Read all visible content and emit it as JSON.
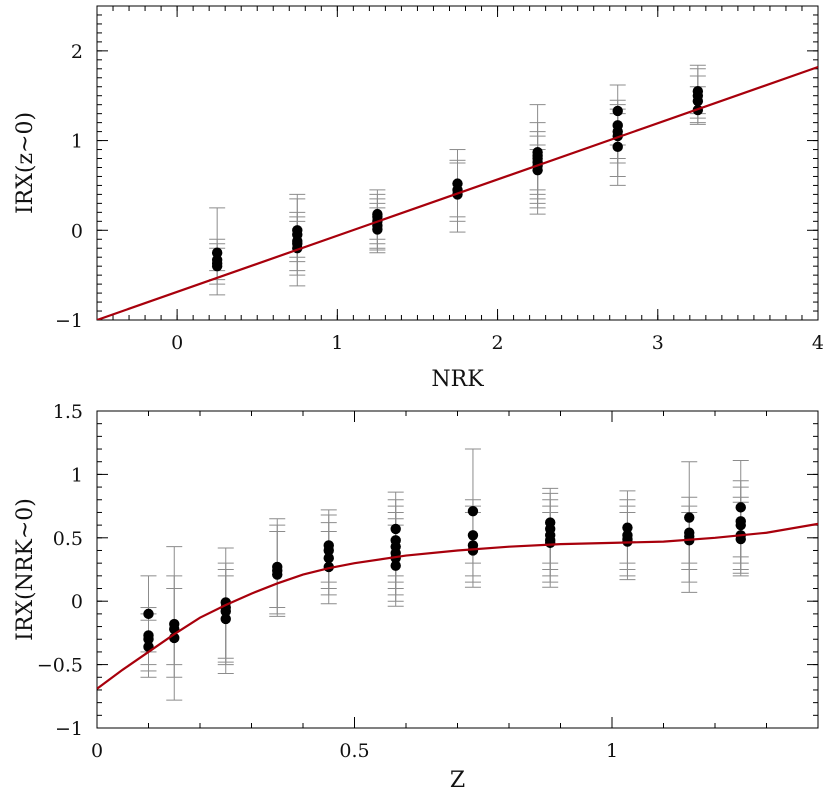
{
  "chart_data": [
    {
      "type": "scatter",
      "xlabel": "NRK",
      "ylabel": "IRX(z~0)",
      "xlim": [
        -0.5,
        4.0
      ],
      "ylim": [
        -1.0,
        2.5
      ],
      "xticks": [
        "0",
        "1",
        "2",
        "3",
        "4"
      ],
      "yticks": [
        "−1",
        "0",
        "1",
        "2"
      ],
      "grid": false,
      "series": [
        {
          "marker": "filled-circle",
          "color": "#000000",
          "points": [
            {
              "x": 0.25,
              "y": -0.25,
              "lo": -0.45,
              "hi": 0.25
            },
            {
              "x": 0.25,
              "y": -0.33,
              "lo": -0.55,
              "hi": -0.1
            },
            {
              "x": 0.25,
              "y": -0.37,
              "lo": -0.6,
              "hi": -0.15
            },
            {
              "x": 0.25,
              "y": -0.4,
              "lo": -0.72,
              "hi": -0.2
            },
            {
              "x": 0.75,
              "y": 0.0,
              "lo": -0.35,
              "hi": 0.4
            },
            {
              "x": 0.75,
              "y": -0.05,
              "lo": -0.3,
              "hi": 0.35
            },
            {
              "x": 0.75,
              "y": -0.12,
              "lo": -0.45,
              "hi": 0.2
            },
            {
              "x": 0.75,
              "y": -0.15,
              "lo": -0.5,
              "hi": 0.15
            },
            {
              "x": 0.75,
              "y": -0.2,
              "lo": -0.62,
              "hi": 0.1
            },
            {
              "x": 1.25,
              "y": 0.18,
              "lo": -0.1,
              "hi": 0.45
            },
            {
              "x": 1.25,
              "y": 0.15,
              "lo": -0.15,
              "hi": 0.4
            },
            {
              "x": 1.25,
              "y": 0.1,
              "lo": -0.2,
              "hi": 0.35
            },
            {
              "x": 1.25,
              "y": 0.05,
              "lo": -0.25,
              "hi": 0.3
            },
            {
              "x": 1.25,
              "y": 0.01,
              "lo": -0.22,
              "hi": 0.25
            },
            {
              "x": 1.75,
              "y": 0.52,
              "lo": 0.15,
              "hi": 0.9
            },
            {
              "x": 1.75,
              "y": 0.45,
              "lo": 0.1,
              "hi": 0.78
            },
            {
              "x": 1.75,
              "y": 0.4,
              "lo": -0.02,
              "hi": 0.75
            },
            {
              "x": 2.25,
              "y": 0.87,
              "lo": 0.45,
              "hi": 1.4
            },
            {
              "x": 2.25,
              "y": 0.83,
              "lo": 0.4,
              "hi": 1.2
            },
            {
              "x": 2.25,
              "y": 0.8,
              "lo": 0.35,
              "hi": 1.1
            },
            {
              "x": 2.25,
              "y": 0.76,
              "lo": 0.3,
              "hi": 1.05
            },
            {
              "x": 2.25,
              "y": 0.72,
              "lo": 0.25,
              "hi": 0.95
            },
            {
              "x": 2.25,
              "y": 0.67,
              "lo": 0.18,
              "hi": 0.9
            },
            {
              "x": 2.75,
              "y": 1.33,
              "lo": 0.95,
              "hi": 1.62
            },
            {
              "x": 2.75,
              "y": 1.17,
              "lo": 0.8,
              "hi": 1.45
            },
            {
              "x": 2.75,
              "y": 1.1,
              "lo": 0.75,
              "hi": 1.4
            },
            {
              "x": 2.75,
              "y": 1.05,
              "lo": 0.6,
              "hi": 1.35
            },
            {
              "x": 2.75,
              "y": 0.93,
              "lo": 0.5,
              "hi": 1.3
            },
            {
              "x": 3.25,
              "y": 1.55,
              "lo": 1.3,
              "hi": 1.84
            },
            {
              "x": 3.25,
              "y": 1.5,
              "lo": 1.25,
              "hi": 1.8
            },
            {
              "x": 3.25,
              "y": 1.44,
              "lo": 1.2,
              "hi": 1.72
            },
            {
              "x": 3.25,
              "y": 1.34,
              "lo": 1.18,
              "hi": 1.6
            }
          ]
        },
        {
          "type": "line",
          "color": "#a8000c",
          "x": [
            -0.5,
            4.0
          ],
          "y": [
            -1.0,
            1.82
          ]
        }
      ]
    },
    {
      "type": "scatter",
      "xlabel": "Z",
      "ylabel": "IRX(NRK~0)",
      "xlim": [
        0.0,
        1.4
      ],
      "ylim": [
        -1.0,
        1.5
      ],
      "xticks": [
        "0",
        "0.5",
        "1"
      ],
      "yticks": [
        "−1",
        "−0.5",
        "0",
        "0.5",
        "1",
        "1.5"
      ],
      "grid": false,
      "series": [
        {
          "marker": "filled-circle",
          "color": "#000000",
          "points": [
            {
              "x": 0.1,
              "y": -0.1,
              "lo": -0.4,
              "hi": 0.2
            },
            {
              "x": 0.1,
              "y": -0.27,
              "lo": -0.5,
              "hi": -0.05
            },
            {
              "x": 0.1,
              "y": -0.3,
              "lo": -0.55,
              "hi": -0.1
            },
            {
              "x": 0.1,
              "y": -0.36,
              "lo": -0.6,
              "hi": -0.15
            },
            {
              "x": 0.15,
              "y": -0.18,
              "lo": -0.5,
              "hi": 0.43
            },
            {
              "x": 0.15,
              "y": -0.22,
              "lo": -0.6,
              "hi": 0.2
            },
            {
              "x": 0.15,
              "y": -0.29,
              "lo": -0.78,
              "hi": 0.1
            },
            {
              "x": 0.25,
              "y": -0.01,
              "lo": -0.45,
              "hi": 0.42
            },
            {
              "x": 0.25,
              "y": -0.05,
              "lo": -0.48,
              "hi": 0.3
            },
            {
              "x": 0.25,
              "y": -0.08,
              "lo": -0.5,
              "hi": 0.25
            },
            {
              "x": 0.25,
              "y": -0.14,
              "lo": -0.57,
              "hi": 0.2
            },
            {
              "x": 0.35,
              "y": 0.27,
              "lo": -0.05,
              "hi": 0.65
            },
            {
              "x": 0.35,
              "y": 0.24,
              "lo": -0.1,
              "hi": 0.6
            },
            {
              "x": 0.35,
              "y": 0.21,
              "lo": -0.12,
              "hi": 0.55
            },
            {
              "x": 0.45,
              "y": 0.44,
              "lo": 0.15,
              "hi": 0.72
            },
            {
              "x": 0.45,
              "y": 0.4,
              "lo": 0.1,
              "hi": 0.68
            },
            {
              "x": 0.45,
              "y": 0.34,
              "lo": 0.05,
              "hi": 0.62
            },
            {
              "x": 0.45,
              "y": 0.27,
              "lo": -0.02,
              "hi": 0.55
            },
            {
              "x": 0.58,
              "y": 0.57,
              "lo": 0.2,
              "hi": 0.86
            },
            {
              "x": 0.58,
              "y": 0.48,
              "lo": 0.15,
              "hi": 0.8
            },
            {
              "x": 0.58,
              "y": 0.43,
              "lo": 0.1,
              "hi": 0.75
            },
            {
              "x": 0.58,
              "y": 0.38,
              "lo": 0.05,
              "hi": 0.7
            },
            {
              "x": 0.58,
              "y": 0.34,
              "lo": 0.0,
              "hi": 0.65
            },
            {
              "x": 0.58,
              "y": 0.28,
              "lo": -0.04,
              "hi": 0.6
            },
            {
              "x": 0.73,
              "y": 0.71,
              "lo": 0.3,
              "hi": 1.2
            },
            {
              "x": 0.73,
              "y": 0.52,
              "lo": 0.2,
              "hi": 0.8
            },
            {
              "x": 0.73,
              "y": 0.44,
              "lo": 0.15,
              "hi": 0.75
            },
            {
              "x": 0.73,
              "y": 0.4,
              "lo": 0.11,
              "hi": 0.7
            },
            {
              "x": 0.88,
              "y": 0.62,
              "lo": 0.3,
              "hi": 0.89
            },
            {
              "x": 0.88,
              "y": 0.57,
              "lo": 0.25,
              "hi": 0.85
            },
            {
              "x": 0.88,
              "y": 0.52,
              "lo": 0.2,
              "hi": 0.8
            },
            {
              "x": 0.88,
              "y": 0.48,
              "lo": 0.15,
              "hi": 0.75
            },
            {
              "x": 0.88,
              "y": 0.46,
              "lo": 0.11,
              "hi": 0.7
            },
            {
              "x": 1.03,
              "y": 0.58,
              "lo": 0.3,
              "hi": 0.87
            },
            {
              "x": 1.03,
              "y": 0.52,
              "lo": 0.25,
              "hi": 0.8
            },
            {
              "x": 1.03,
              "y": 0.49,
              "lo": 0.2,
              "hi": 0.75
            },
            {
              "x": 1.03,
              "y": 0.47,
              "lo": 0.17,
              "hi": 0.7
            },
            {
              "x": 1.15,
              "y": 0.66,
              "lo": 0.3,
              "hi": 1.1
            },
            {
              "x": 1.15,
              "y": 0.54,
              "lo": 0.25,
              "hi": 0.82
            },
            {
              "x": 1.15,
              "y": 0.51,
              "lo": 0.15,
              "hi": 0.75
            },
            {
              "x": 1.15,
              "y": 0.48,
              "lo": 0.07,
              "hi": 0.7
            },
            {
              "x": 1.25,
              "y": 0.74,
              "lo": 0.35,
              "hi": 1.11
            },
            {
              "x": 1.25,
              "y": 0.63,
              "lo": 0.3,
              "hi": 0.95
            },
            {
              "x": 1.25,
              "y": 0.6,
              "lo": 0.25,
              "hi": 0.9
            },
            {
              "x": 1.25,
              "y": 0.52,
              "lo": 0.22,
              "hi": 0.82
            },
            {
              "x": 1.25,
              "y": 0.49,
              "lo": 0.2,
              "hi": 0.78
            }
          ]
        },
        {
          "type": "line",
          "color": "#a8000c",
          "x": [
            0.0,
            0.05,
            0.1,
            0.15,
            0.2,
            0.25,
            0.3,
            0.35,
            0.4,
            0.45,
            0.5,
            0.6,
            0.7,
            0.8,
            0.9,
            1.0,
            1.1,
            1.2,
            1.3,
            1.4
          ],
          "y": [
            -0.69,
            -0.54,
            -0.4,
            -0.26,
            -0.13,
            -0.03,
            0.06,
            0.14,
            0.21,
            0.26,
            0.3,
            0.36,
            0.4,
            0.43,
            0.45,
            0.46,
            0.47,
            0.5,
            0.54,
            0.61
          ]
        }
      ]
    }
  ]
}
